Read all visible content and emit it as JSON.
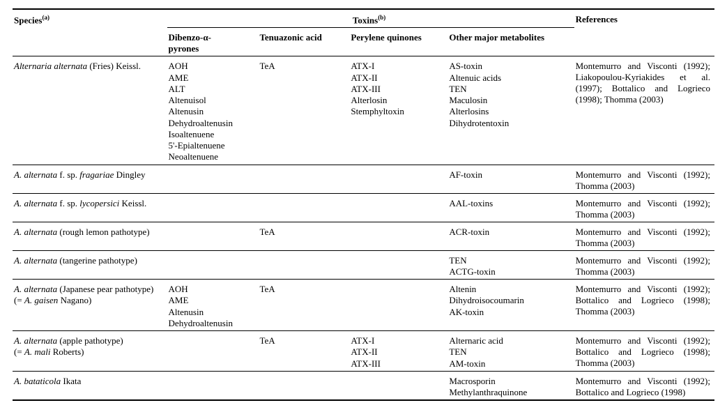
{
  "headers": {
    "species": "Species",
    "species_sup": "(a)",
    "toxins": "Toxins",
    "toxins_sup": "(b)",
    "references": "References",
    "col_dibenzo_line1": "Dibenzo-α-",
    "col_dibenzo_line2": "pyrones",
    "col_tea": "Tenuazonic acid",
    "col_per": "Perylene quinones",
    "col_other": "Other major metabolites"
  },
  "rows": [
    {
      "species_html": "<span class=\"italic\">Alternaria alternata</span> (Fries) Keissl.",
      "dibenzo": [
        "AOH",
        "AME",
        "ALT",
        "Altenuisol",
        "Altenusin",
        "Dehydroaltenusin",
        "Isoaltenuene",
        "5'-Epialtenuene",
        "Neoaltenuene"
      ],
      "tea": [
        "TeA"
      ],
      "per": [
        "ATX-I",
        "ATX-II",
        "ATX-III",
        "Alterlosin",
        "Stemphyltoxin"
      ],
      "other": [
        "AS-toxin",
        "Altenuic acids",
        "TEN",
        "Maculosin",
        "Alterlosins",
        "Dihydrotentoxin"
      ],
      "refs": "Montemurro and Visconti (1992); Liakopoulou-Kyriakides et al. (1997); Bottalico and Logrieco (1998); Thomma (2003)"
    },
    {
      "species_html": "<span class=\"italic\">A. alternata</span> f. sp. <span class=\"italic\">fragariae</span> Dingley",
      "dibenzo": [],
      "tea": [],
      "per": [],
      "other": [
        "AF-toxin"
      ],
      "refs": "Montemurro and Visconti (1992); Thomma (2003)"
    },
    {
      "species_html": "<span class=\"italic\">A. alternata</span> f. sp. <span class=\"italic\">lycopersici</span> Keissl.",
      "dibenzo": [],
      "tea": [],
      "per": [],
      "other": [
        "AAL-toxins"
      ],
      "refs": "Montemurro and Visconti (1992); Thomma (2003)"
    },
    {
      "species_html": "<span class=\"italic\">A. alternata</span> (rough lemon pathotype)",
      "dibenzo": [],
      "tea": [
        "TeA"
      ],
      "per": [],
      "other": [
        "ACR-toxin"
      ],
      "refs": "Montemurro and Visconti (1992); Thomma (2003)"
    },
    {
      "species_html": "<span class=\"italic\">A. alternata</span> (tangerine pathotype)",
      "dibenzo": [],
      "tea": [],
      "per": [],
      "other": [
        "TEN",
        "ACTG-toxin"
      ],
      "refs": "Montemurro and Visconti (1992); Thomma (2003)"
    },
    {
      "species_html": "<span class=\"italic\">A. alternata</span> (Japanese pear pathotype)<br>(= <span class=\"italic\">A. gaisen</span> Nagano)",
      "dibenzo": [
        "AOH",
        "AME",
        "Altenusin",
        "Dehydroaltenusin"
      ],
      "tea": [
        "TeA"
      ],
      "per": [],
      "other": [
        "Altenin",
        "Dihydroisocoumarin",
        "AK-toxin"
      ],
      "refs": "Montemurro and Visconti (1992); Bottalico and Logrieco (1998); Thomma (2003)"
    },
    {
      "species_html": "<span class=\"italic\">A. alternata</span> (apple pathotype)<br>(= <span class=\"italic\">A. mali</span> Roberts)",
      "dibenzo": [],
      "tea": [
        "TeA"
      ],
      "per": [
        "ATX-I",
        "ATX-II",
        "ATX-III"
      ],
      "other": [
        "Alternaric acid",
        "TEN",
        "AM-toxin"
      ],
      "refs": "Montemurro and Visconti (1992); Bottalico and Logrieco (1998); Thomma (2003)"
    },
    {
      "species_html": "<span class=\"italic\">A. bataticola</span> Ikata",
      "dibenzo": [],
      "tea": [],
      "per": [],
      "other": [
        "Macrosporin",
        "Methylanthraquinone"
      ],
      "refs": "Montemurro and Visconti (1992); Bottalico and Logrieco (1998)"
    }
  ]
}
